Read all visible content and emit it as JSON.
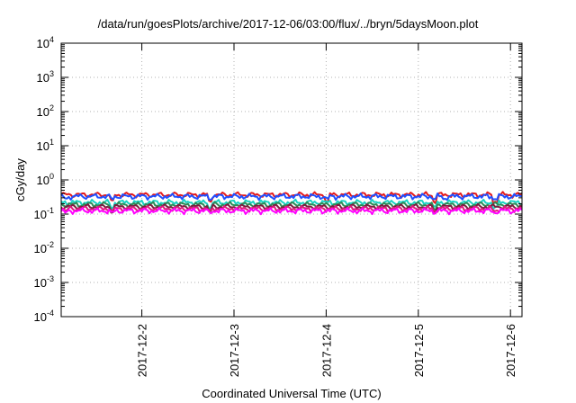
{
  "chart_data": {
    "type": "line",
    "title": "/data/run/goesPlots/archive/2017-12-06/03:00/flux/../bryn/5daysMoon.plot",
    "xlabel": "Coordinated Universal Time (UTC)",
    "ylabel": "cGy/day",
    "yscale": "log",
    "ylim": [
      0.0001,
      10000
    ],
    "y_tick_labels": [
      {
        "base": "10",
        "exp": "-4"
      },
      {
        "base": "10",
        "exp": "-3"
      },
      {
        "base": "10",
        "exp": "-2"
      },
      {
        "base": "10",
        "exp": "-1"
      },
      {
        "base": "10",
        "exp": "0"
      },
      {
        "base": "10",
        "exp": "1"
      },
      {
        "base": "10",
        "exp": "2"
      },
      {
        "base": "10",
        "exp": "3"
      },
      {
        "base": "10",
        "exp": "4"
      }
    ],
    "xlim": [
      "2017-12-01T03:00",
      "2017-12-06T03:00"
    ],
    "x_tick_labels": [
      "2017-12-2",
      "2017-12-3",
      "2017-12-4",
      "2017-12-5",
      "2017-12-6"
    ],
    "x_ticks": [
      "2017-12-02T00:00",
      "2017-12-03T00:00",
      "2017-12-04T00:00",
      "2017-12-05T00:00",
      "2017-12-06T00:00"
    ],
    "grid": true,
    "series": [
      {
        "color": "#e41a1c",
        "level": 0.37,
        "spikes": [
          0.55,
          1.62,
          2.88,
          4.05,
          4.71
        ],
        "spike_depth": 0.13
      },
      {
        "color": "#1f4fff",
        "level": 0.33,
        "spikes": [
          0.05,
          0.55,
          1.62,
          2.88,
          4.05,
          4.15,
          4.71
        ],
        "spike_depth": 0.22
      },
      {
        "color": "#19d3c4",
        "level": 0.22,
        "spikes": [
          0.55,
          1.62,
          4.05,
          4.71
        ],
        "spike_depth": 0.08
      },
      {
        "color": "#2e8b57",
        "level": 0.19,
        "spikes": [
          0.55,
          1.62,
          4.05
        ],
        "spike_depth": 0.06
      },
      {
        "color": "#7a1f3d",
        "level": 0.165,
        "spikes": [
          0.55,
          1.62,
          4.05
        ],
        "spike_depth": 0.05
      },
      {
        "color": "#e0197d",
        "level": 0.145,
        "spikes": [
          0.05,
          0.55,
          1.62,
          4.05,
          4.71
        ],
        "spike_depth": 0.06
      },
      {
        "color": "#ff00ff",
        "level": 0.125,
        "spikes": [
          0.05,
          0.55,
          1.62,
          4.05,
          4.71
        ],
        "spike_depth": 0.05
      }
    ]
  }
}
